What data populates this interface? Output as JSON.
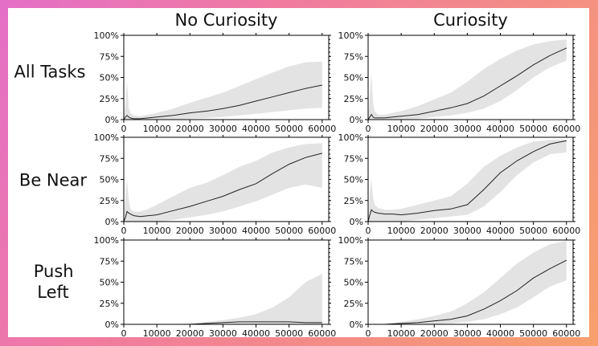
{
  "figure": {
    "col_titles": [
      "No Curiosity",
      "Curiosity"
    ],
    "row_labels": [
      [
        "All Tasks"
      ],
      [
        "Be Near"
      ],
      [
        "Push",
        "Left"
      ]
    ]
  },
  "chart_data": [
    {
      "type": "line",
      "row": 0,
      "col": 0,
      "title": "No Curiosity",
      "ylabel": "All Tasks",
      "xlim": [
        0,
        62000
      ],
      "ylim": [
        0,
        100
      ],
      "xticks": [
        0,
        10000,
        20000,
        30000,
        40000,
        50000,
        60000
      ],
      "yticks": [
        "0%",
        "25%",
        "50%",
        "75%",
        "100%"
      ],
      "grid": false,
      "x": [
        0,
        500,
        1000,
        1500,
        2000,
        3000,
        5000,
        7500,
        10000,
        15000,
        20000,
        25000,
        30000,
        35000,
        40000,
        45000,
        50000,
        55000,
        60000
      ],
      "series": [
        {
          "mean": [
            0,
            3,
            5,
            3,
            2,
            1,
            1,
            2,
            3,
            5,
            8,
            10,
            13,
            17,
            22,
            27,
            32,
            37,
            41
          ],
          "upper": [
            0,
            20,
            45,
            14,
            8,
            5,
            4,
            6,
            8,
            13,
            20,
            26,
            32,
            40,
            48,
            56,
            63,
            68,
            69
          ],
          "lower": [
            0,
            0,
            0,
            0,
            0,
            0,
            0,
            0,
            0,
            0,
            1,
            2,
            3,
            5,
            7,
            9,
            11,
            13,
            14
          ]
        }
      ]
    },
    {
      "type": "line",
      "row": 0,
      "col": 1,
      "title": "Curiosity",
      "ylabel": "All Tasks",
      "xlim": [
        0,
        62000
      ],
      "ylim": [
        0,
        100
      ],
      "xticks": [
        0,
        10000,
        20000,
        30000,
        40000,
        50000,
        60000
      ],
      "yticks": [
        "0%",
        "25%",
        "50%",
        "75%",
        "100%"
      ],
      "grid": false,
      "x": [
        0,
        500,
        1000,
        1500,
        2000,
        3000,
        5000,
        7500,
        10000,
        15000,
        20000,
        25000,
        30000,
        35000,
        40000,
        45000,
        50000,
        55000,
        60000
      ],
      "series": [
        {
          "mean": [
            0,
            3,
            6,
            3,
            2,
            2,
            2,
            3,
            4,
            6,
            10,
            14,
            19,
            28,
            40,
            52,
            65,
            76,
            85
          ],
          "upper": [
            0,
            30,
            55,
            20,
            10,
            6,
            6,
            8,
            10,
            16,
            24,
            32,
            45,
            60,
            72,
            82,
            89,
            93,
            95
          ],
          "lower": [
            0,
            0,
            0,
            0,
            0,
            0,
            0,
            0,
            0,
            1,
            3,
            5,
            8,
            13,
            22,
            35,
            50,
            62,
            70
          ]
        }
      ]
    },
    {
      "type": "line",
      "row": 1,
      "col": 0,
      "title": "No Curiosity",
      "ylabel": "Be Near",
      "xlim": [
        0,
        62000
      ],
      "ylim": [
        0,
        100
      ],
      "xticks": [
        0,
        10000,
        20000,
        30000,
        40000,
        50000,
        60000
      ],
      "yticks": [
        "0%",
        "25%",
        "50%",
        "75%",
        "100%"
      ],
      "grid": false,
      "x": [
        0,
        500,
        1000,
        1500,
        2000,
        3000,
        5000,
        7500,
        10000,
        15000,
        20000,
        25000,
        30000,
        35000,
        40000,
        45000,
        50000,
        55000,
        60000
      ],
      "series": [
        {
          "mean": [
            0,
            5,
            12,
            10,
            9,
            7,
            6,
            7,
            8,
            13,
            18,
            24,
            30,
            38,
            45,
            57,
            68,
            76,
            81
          ],
          "upper": [
            0,
            30,
            50,
            25,
            15,
            12,
            12,
            15,
            20,
            30,
            40,
            46,
            55,
            65,
            72,
            82,
            88,
            92,
            93
          ],
          "lower": [
            0,
            0,
            0,
            0,
            0,
            0,
            0,
            0,
            0,
            2,
            5,
            8,
            12,
            18,
            24,
            32,
            40,
            44,
            40
          ]
        }
      ]
    },
    {
      "type": "line",
      "row": 1,
      "col": 1,
      "title": "Curiosity",
      "ylabel": "Be Near",
      "xlim": [
        0,
        62000
      ],
      "ylim": [
        0,
        100
      ],
      "xticks": [
        0,
        10000,
        20000,
        30000,
        40000,
        50000,
        60000
      ],
      "yticks": [
        "0%",
        "25%",
        "50%",
        "75%",
        "100%"
      ],
      "grid": false,
      "x": [
        0,
        500,
        1000,
        1500,
        2000,
        3000,
        5000,
        7500,
        10000,
        15000,
        20000,
        25000,
        30000,
        35000,
        40000,
        45000,
        50000,
        55000,
        60000
      ],
      "series": [
        {
          "mean": [
            0,
            8,
            14,
            12,
            11,
            10,
            9,
            9,
            8,
            10,
            13,
            15,
            20,
            38,
            58,
            72,
            83,
            92,
            96
          ],
          "upper": [
            0,
            35,
            50,
            28,
            20,
            16,
            14,
            14,
            15,
            20,
            25,
            30,
            45,
            65,
            78,
            88,
            95,
            97,
            97
          ],
          "lower": [
            0,
            0,
            0,
            0,
            0,
            0,
            0,
            0,
            0,
            2,
            4,
            6,
            8,
            18,
            35,
            55,
            70,
            80,
            82
          ]
        }
      ]
    },
    {
      "type": "line",
      "row": 2,
      "col": 0,
      "title": "No Curiosity",
      "ylabel": "Push Left",
      "xlim": [
        0,
        62000
      ],
      "ylim": [
        0,
        100
      ],
      "xticks": [
        0,
        10000,
        20000,
        30000,
        40000,
        50000,
        60000
      ],
      "yticks": [
        "0%",
        "25%",
        "50%",
        "75%",
        "100%"
      ],
      "grid": false,
      "x": [
        0,
        5000,
        10000,
        15000,
        20000,
        25000,
        30000,
        35000,
        40000,
        45000,
        50000,
        55000,
        60000
      ],
      "series": [
        {
          "mean": [
            0,
            0,
            0,
            0,
            0,
            1,
            2,
            3,
            3,
            3,
            3,
            2,
            2
          ],
          "upper": [
            0,
            0,
            0,
            0,
            1,
            3,
            5,
            8,
            12,
            20,
            32,
            50,
            60
          ],
          "lower": [
            0,
            0,
            0,
            0,
            0,
            0,
            0,
            0,
            0,
            0,
            0,
            0,
            0
          ]
        }
      ]
    },
    {
      "type": "line",
      "row": 2,
      "col": 1,
      "title": "Curiosity",
      "ylabel": "Push Left",
      "xlim": [
        0,
        62000
      ],
      "ylim": [
        0,
        100
      ],
      "xticks": [
        0,
        10000,
        20000,
        30000,
        40000,
        50000,
        60000
      ],
      "yticks": [
        "0%",
        "25%",
        "50%",
        "75%",
        "100%"
      ],
      "grid": false,
      "x": [
        0,
        5000,
        10000,
        15000,
        20000,
        25000,
        30000,
        35000,
        40000,
        45000,
        50000,
        55000,
        60000
      ],
      "series": [
        {
          "mean": [
            0,
            0,
            1,
            2,
            4,
            6,
            10,
            18,
            28,
            40,
            55,
            66,
            76
          ],
          "upper": [
            0,
            0,
            3,
            6,
            10,
            15,
            25,
            38,
            55,
            72,
            85,
            95,
            99
          ],
          "lower": [
            0,
            0,
            0,
            0,
            0,
            1,
            3,
            6,
            12,
            20,
            32,
            45,
            52
          ]
        }
      ]
    }
  ]
}
